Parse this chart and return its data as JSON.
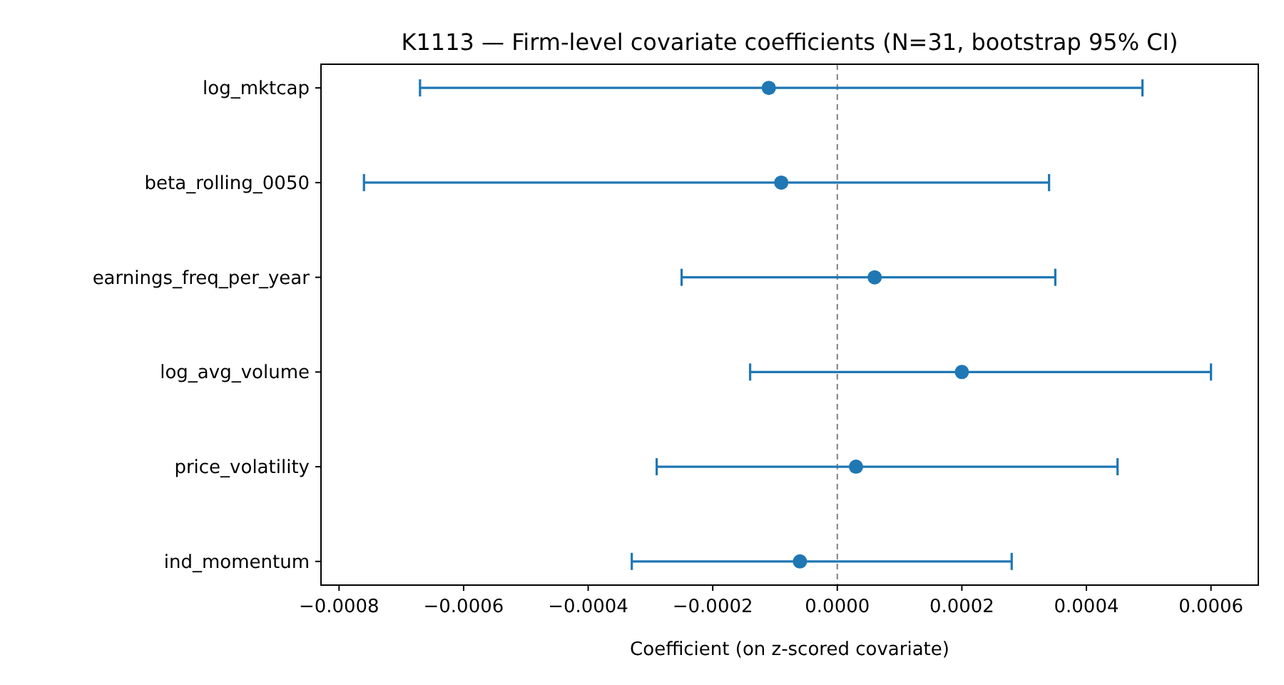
{
  "chart_data": {
    "type": "scatter",
    "orientation": "horizontal",
    "title": "K1113 — Firm-level covariate coefficients (N=31, bootstrap 95% CI)",
    "xlabel": "Coefficient (on z-scored covariate)",
    "categories": [
      "log_mktcap",
      "beta_rolling_0050",
      "earnings_freq_per_year",
      "log_avg_volume",
      "price_volatility",
      "ind_momentum"
    ],
    "values": [
      -0.00011,
      -9e-05,
      6e-05,
      0.0002,
      3e-05,
      -6e-05
    ],
    "errors": [
      [
        -0.00067,
        0.00049
      ],
      [
        -0.00076,
        0.00034
      ],
      [
        -0.00025,
        0.00035
      ],
      [
        -0.00014,
        0.0006
      ],
      [
        -0.00029,
        0.00045
      ],
      [
        -0.00033,
        0.00028
      ]
    ],
    "color": "#1f77b4",
    "marker": "circle",
    "xlim": [
      -0.000829,
      0.000676
    ],
    "xticks": [
      {
        "value": -0.0008,
        "label": "−0.0008"
      },
      {
        "value": -0.0006,
        "label": "−0.0006"
      },
      {
        "value": -0.0004,
        "label": "−0.0004"
      },
      {
        "value": -0.0002,
        "label": "−0.0002"
      },
      {
        "value": 0,
        "label": "0.0000"
      },
      {
        "value": 0.0002,
        "label": "0.0002"
      },
      {
        "value": 0.0004,
        "label": "0.0004"
      },
      {
        "value": 0.0006,
        "label": "0.0006"
      }
    ],
    "ref_lines": [
      {
        "axis": "x",
        "value": 0,
        "color": "#808080",
        "line_style": "dashed"
      }
    ],
    "grid": false
  }
}
